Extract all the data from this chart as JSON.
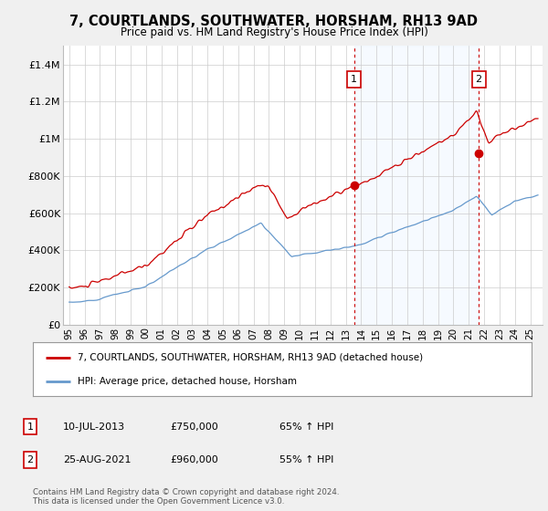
{
  "title": "7, COURTLANDS, SOUTHWATER, HORSHAM, RH13 9AD",
  "subtitle": "Price paid vs. HM Land Registry's House Price Index (HPI)",
  "red_label": "7, COURTLANDS, SOUTHWATER, HORSHAM, RH13 9AD (detached house)",
  "blue_label": "HPI: Average price, detached house, Horsham",
  "annotation1_date": "10-JUL-2013",
  "annotation1_price": "£750,000",
  "annotation1_pct": "65% ↑ HPI",
  "annotation1_year": 2013.53,
  "annotation1_value": 750000,
  "annotation2_date": "25-AUG-2021",
  "annotation2_price": "£960,000",
  "annotation2_pct": "55% ↑ HPI",
  "annotation2_year": 2021.65,
  "annotation2_value": 960000,
  "ylim": [
    0,
    1500000
  ],
  "xlim_start": 1994.6,
  "xlim_end": 2025.8,
  "yticks": [
    0,
    200000,
    400000,
    600000,
    800000,
    1000000,
    1200000,
    1400000
  ],
  "ytick_labels": [
    "£0",
    "£200K",
    "£400K",
    "£600K",
    "£800K",
    "£1M",
    "£1.2M",
    "£1.4M"
  ],
  "xtick_years": [
    1995,
    1996,
    1997,
    1998,
    1999,
    2000,
    2001,
    2002,
    2003,
    2004,
    2005,
    2006,
    2007,
    2008,
    2009,
    2010,
    2011,
    2012,
    2013,
    2014,
    2015,
    2016,
    2017,
    2018,
    2019,
    2020,
    2021,
    2022,
    2023,
    2024,
    2025
  ],
  "background_color": "#f0f0f0",
  "plot_bg_color": "#ffffff",
  "shade_color": "#ddeeff",
  "red_color": "#cc0000",
  "blue_color": "#6699cc",
  "grid_color": "#cccccc",
  "footer": "Contains HM Land Registry data © Crown copyright and database right 2024.\nThis data is licensed under the Open Government Licence v3.0."
}
